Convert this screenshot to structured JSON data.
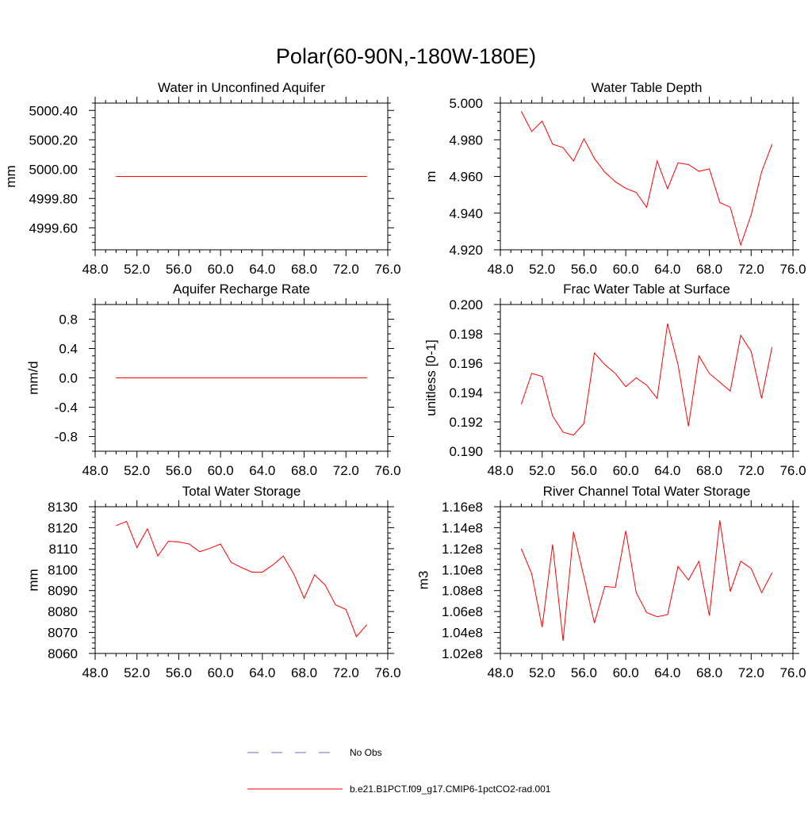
{
  "figure": {
    "title": "Polar(60-90N,-180W-180E)",
    "line_color": "#ff0000",
    "obs_color": "#6a6ad0"
  },
  "legend": {
    "obs_label": "No Obs",
    "model_label": "b.e21.B1PCT.f09_g17.CMIP6-1pctCO2-rad.001"
  },
  "chart_data": [
    {
      "type": "line",
      "title": "Water in Unconfined Aquifer",
      "ylabel": "mm",
      "xlim": [
        48,
        76
      ],
      "ylim": [
        4999.45,
        5000.45
      ],
      "xticks": [
        48,
        52,
        56,
        60,
        64,
        68,
        72,
        76
      ],
      "xticklabels": [
        "48.0",
        "52.0",
        "56.0",
        "60.0",
        "64.0",
        "68.0",
        "72.0",
        "76.0"
      ],
      "yticks": [
        4999.6,
        4999.8,
        5000.0,
        5000.2,
        5000.4
      ],
      "yticklabels": [
        "4999.60",
        "4999.80",
        "5000.00",
        "5000.20",
        "5000.40"
      ],
      "x": [
        50,
        51,
        52,
        53,
        54,
        55,
        56,
        57,
        58,
        59,
        60,
        61,
        62,
        63,
        64,
        65,
        66,
        67,
        68,
        69,
        70,
        71,
        72,
        73,
        74
      ],
      "series": [
        {
          "values": [
            4999.95,
            4999.95,
            4999.95,
            4999.95,
            4999.95,
            4999.95,
            4999.95,
            4999.95,
            4999.95,
            4999.95,
            4999.95,
            4999.95,
            4999.95,
            4999.95,
            4999.95,
            4999.95,
            4999.95,
            4999.95,
            4999.95,
            4999.95,
            4999.95,
            4999.95,
            4999.95,
            4999.95,
            4999.95
          ]
        }
      ]
    },
    {
      "type": "line",
      "title": "Water Table Depth",
      "ylabel": "m",
      "xlim": [
        48,
        76
      ],
      "ylim": [
        4.92,
        5.0
      ],
      "xticks": [
        48,
        52,
        56,
        60,
        64,
        68,
        72,
        76
      ],
      "xticklabels": [
        "48.0",
        "52.0",
        "56.0",
        "60.0",
        "64.0",
        "68.0",
        "72.0",
        "76.0"
      ],
      "yticks": [
        4.92,
        4.94,
        4.96,
        4.98,
        5.0
      ],
      "yticklabels": [
        "4.920",
        "4.940",
        "4.960",
        "4.980",
        "5.000"
      ],
      "x": [
        50,
        51,
        52,
        53,
        54,
        55,
        56,
        57,
        58,
        59,
        60,
        61,
        62,
        63,
        64,
        65,
        66,
        67,
        68,
        69,
        70,
        71,
        72,
        73,
        74
      ],
      "series": [
        {
          "values": [
            4.9955,
            4.9845,
            4.9902,
            4.9776,
            4.9757,
            4.9684,
            4.9805,
            4.9698,
            4.9623,
            4.9571,
            4.9535,
            4.9513,
            4.9431,
            4.9684,
            4.9533,
            4.9674,
            4.9665,
            4.9628,
            4.9641,
            4.9458,
            4.9432,
            4.9226,
            4.9391,
            4.9625,
            4.9776
          ]
        }
      ]
    },
    {
      "type": "line",
      "title": "Aquifer Recharge Rate",
      "ylabel": "mm/d",
      "xlim": [
        48,
        76
      ],
      "ylim": [
        -1.0,
        1.0
      ],
      "xticks": [
        48,
        52,
        56,
        60,
        64,
        68,
        72,
        76
      ],
      "xticklabels": [
        "48.0",
        "52.0",
        "56.0",
        "60.0",
        "64.0",
        "68.0",
        "72.0",
        "76.0"
      ],
      "yticks": [
        -0.8,
        -0.4,
        0.0,
        0.4,
        0.8
      ],
      "yticklabels": [
        "-0.8",
        "-0.4",
        "0.0",
        "0.4",
        "0.8"
      ],
      "x": [
        50,
        51,
        52,
        53,
        54,
        55,
        56,
        57,
        58,
        59,
        60,
        61,
        62,
        63,
        64,
        65,
        66,
        67,
        68,
        69,
        70,
        71,
        72,
        73,
        74
      ],
      "series": [
        {
          "values": [
            0,
            0,
            0,
            0,
            0,
            0,
            0,
            0,
            0,
            0,
            0,
            0,
            0,
            0,
            0,
            0,
            0,
            0,
            0,
            0,
            0,
            0,
            0,
            0,
            0
          ]
        }
      ]
    },
    {
      "type": "line",
      "title": "Frac Water Table at Surface",
      "ylabel": "unitless [0-1]",
      "xlim": [
        48,
        76
      ],
      "ylim": [
        0.19,
        0.2
      ],
      "xticks": [
        48,
        52,
        56,
        60,
        64,
        68,
        72,
        76
      ],
      "xticklabels": [
        "48.0",
        "52.0",
        "56.0",
        "60.0",
        "64.0",
        "68.0",
        "72.0",
        "76.0"
      ],
      "yticks": [
        0.19,
        0.192,
        0.194,
        0.196,
        0.198,
        0.2
      ],
      "yticklabels": [
        "0.190",
        "0.192",
        "0.194",
        "0.196",
        "0.198",
        "0.200"
      ],
      "x": [
        50,
        51,
        52,
        53,
        54,
        55,
        56,
        57,
        58,
        59,
        60,
        61,
        62,
        63,
        64,
        65,
        66,
        67,
        68,
        69,
        70,
        71,
        72,
        73,
        74
      ],
      "series": [
        {
          "values": [
            0.1932,
            0.1953,
            0.1951,
            0.1924,
            0.1913,
            0.1911,
            0.1919,
            0.1967,
            0.1959,
            0.1953,
            0.1944,
            0.195,
            0.1945,
            0.1936,
            0.1987,
            0.1959,
            0.1917,
            0.1965,
            0.1953,
            0.1947,
            0.1941,
            0.1979,
            0.1968,
            0.1936,
            0.1971
          ]
        }
      ]
    },
    {
      "type": "line",
      "title": "Total Water Storage",
      "ylabel": "mm",
      "xlim": [
        48,
        76
      ],
      "ylim": [
        8060,
        8130
      ],
      "xticks": [
        48,
        52,
        56,
        60,
        64,
        68,
        72,
        76
      ],
      "xticklabels": [
        "48.0",
        "52.0",
        "56.0",
        "60.0",
        "64.0",
        "68.0",
        "72.0",
        "76.0"
      ],
      "yticks": [
        8060,
        8070,
        8080,
        8090,
        8100,
        8110,
        8120,
        8130
      ],
      "yticklabels": [
        "8060",
        "8070",
        "8080",
        "8090",
        "8100",
        "8110",
        "8120",
        "8130"
      ],
      "x": [
        50,
        51,
        52,
        53,
        54,
        55,
        56,
        57,
        58,
        59,
        60,
        61,
        62,
        63,
        64,
        65,
        66,
        67,
        68,
        69,
        70,
        71,
        72,
        73,
        74
      ],
      "series": [
        {
          "values": [
            8121,
            8123,
            8110.5,
            8119.5,
            8106.5,
            8113.5,
            8113.2,
            8112.2,
            8108.5,
            8110.2,
            8112.2,
            8103.5,
            8101,
            8098.8,
            8098.8,
            8102.2,
            8106.5,
            8098,
            8086.3,
            8097.5,
            8092.7,
            8083.2,
            8081,
            8068,
            8073.7
          ]
        }
      ]
    },
    {
      "type": "line",
      "title": "River Channel Total Water Storage",
      "ylabel": "m3",
      "xlim": [
        48,
        76
      ],
      "ylim": [
        102000000,
        116000000
      ],
      "xticks": [
        48,
        52,
        56,
        60,
        64,
        68,
        72,
        76
      ],
      "xticklabels": [
        "48.0",
        "52.0",
        "56.0",
        "60.0",
        "64.0",
        "68.0",
        "72.0",
        "76.0"
      ],
      "yticks": [
        102000000,
        104000000,
        106000000,
        108000000,
        110000000,
        112000000,
        114000000,
        116000000
      ],
      "yticklabels": [
        "1.02e8",
        "1.04e8",
        "1.06e8",
        "1.08e8",
        "1.10e8",
        "1.12e8",
        "1.14e8",
        "1.16e8"
      ],
      "x": [
        50,
        51,
        52,
        53,
        54,
        55,
        56,
        57,
        58,
        59,
        60,
        61,
        62,
        63,
        64,
        65,
        66,
        67,
        68,
        69,
        70,
        71,
        72,
        73,
        74
      ],
      "series": [
        {
          "values": [
            112000000,
            109600000,
            104500000,
            112400000,
            103200000,
            113600000,
            109300000,
            104900000,
            108400000,
            108300000,
            113700000,
            107800000,
            105900000,
            105500000,
            105700000,
            110300000,
            109000000,
            110800000,
            105600000,
            114700000,
            107900000,
            110800000,
            110100000,
            107800000,
            109700000
          ]
        }
      ]
    }
  ]
}
